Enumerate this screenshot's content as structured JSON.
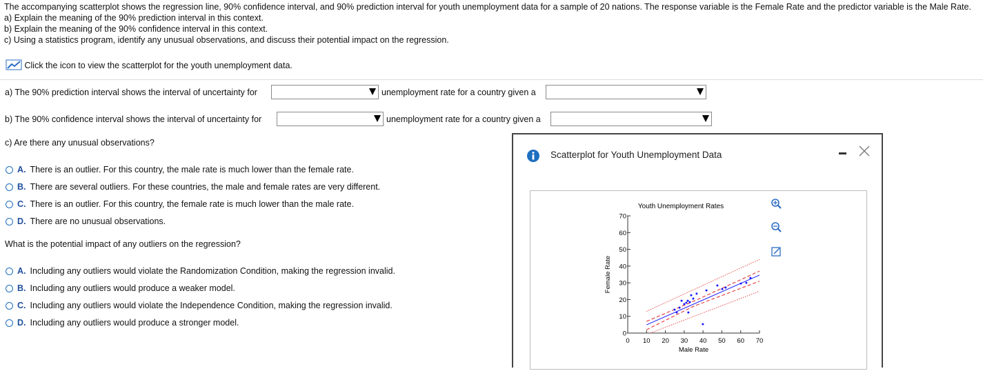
{
  "question": {
    "intro": "The accompanying scatterplot shows the regression line, 90% confidence interval, and 90% prediction interval for youth unemployment data for a sample of 20 nations. The response variable is the Female Rate and the predictor variable is the Male Rate.",
    "items": [
      "a) Explain the meaning of the 90% prediction interval in this context.",
      "b) Explain the meaning of the 90% confidence interval in this context.",
      "c) Using a statistics program, identify any unusual observations, and discuss their potential impact on the regression."
    ],
    "link": "Click the icon to view the scatterplot for the youth unemployment data."
  },
  "part_a": {
    "before": "a) The 90% prediction interval shows the interval of uncertainty for",
    "middle": "unemployment rate for a country given a"
  },
  "part_b": {
    "before": "b) The 90% confidence interval shows the interval of uncertainty for",
    "middle": "unemployment rate for a country given a"
  },
  "part_c": {
    "prompt": "c) Are there any unusual observations?",
    "options": [
      {
        "letter": "A.",
        "text": "There is an outlier. For this country, the male rate is much lower than the female rate."
      },
      {
        "letter": "B.",
        "text": "There are several outliers. For these countries, the male and female rates are very different."
      },
      {
        "letter": "C.",
        "text": "There is an outlier. For this country, the female rate is much lower than the male rate."
      },
      {
        "letter": "D.",
        "text": "There are no unusual observations."
      }
    ]
  },
  "impact": {
    "prompt": "What is the potential impact of any outliers on the regression?",
    "options": [
      {
        "letter": "A.",
        "text": "Including any outliers would violate the Randomization Condition, making the regression invalid."
      },
      {
        "letter": "B.",
        "text": "Including any outliers would produce a weaker model."
      },
      {
        "letter": "C.",
        "text": "Including any outliers would violate the Independence Condition, making the regression invalid."
      },
      {
        "letter": "D.",
        "text": "Including any outliers would produce a stronger model."
      }
    ]
  },
  "popup": {
    "title": "Scatterplot for Youth Unemployment Data"
  },
  "chart_data": {
    "type": "scatter",
    "title": "Youth Unemployment Rates",
    "x_label": "Male Rate",
    "y_label": "Female Rate",
    "color": "#1a1aff",
    "x": [
      24.9,
      26.0,
      27.5,
      28.6,
      30.0,
      31.1,
      31.9,
      32.2,
      33.0,
      33.7,
      34.8,
      36.6,
      39.9,
      41.8,
      47.6,
      50.2,
      52.0,
      60.1,
      63.0,
      65.2
    ],
    "y": [
      14.0,
      12.3,
      15.2,
      19.3,
      17.3,
      18.1,
      19.3,
      12.3,
      18.5,
      22.6,
      20.6,
      23.5,
      5.3,
      25.5,
      28.4,
      26.3,
      27.2,
      29.6,
      30.0,
      32.9
    ],
    "lines": [
      {
        "style": "solid",
        "color": "#1a1aff",
        "x": [
          10,
          70
        ],
        "y": [
          4.9,
          34.6
        ]
      },
      {
        "style": "dashed",
        "color": "#e02020",
        "x": [
          10,
          35,
          70
        ],
        "y": [
          7,
          19,
          37
        ]
      },
      {
        "style": "dashed",
        "color": "#e02020",
        "x": [
          10,
          35,
          70
        ],
        "y": [
          2,
          16,
          31
        ]
      },
      {
        "style": "dotted",
        "color": "#e02020",
        "x": [
          10,
          70
        ],
        "y": [
          13,
          44
        ]
      },
      {
        "style": "dotted",
        "color": "#e02020",
        "x": [
          12,
          70
        ],
        "y": [
          0,
          25
        ]
      }
    ],
    "xlim": [
      0,
      70
    ],
    "ylim": [
      0,
      70
    ],
    "xticks": [
      0,
      10,
      20,
      30,
      40,
      50,
      60,
      70
    ],
    "yticks": [
      0,
      10,
      20,
      30,
      40,
      50,
      60,
      70
    ]
  }
}
